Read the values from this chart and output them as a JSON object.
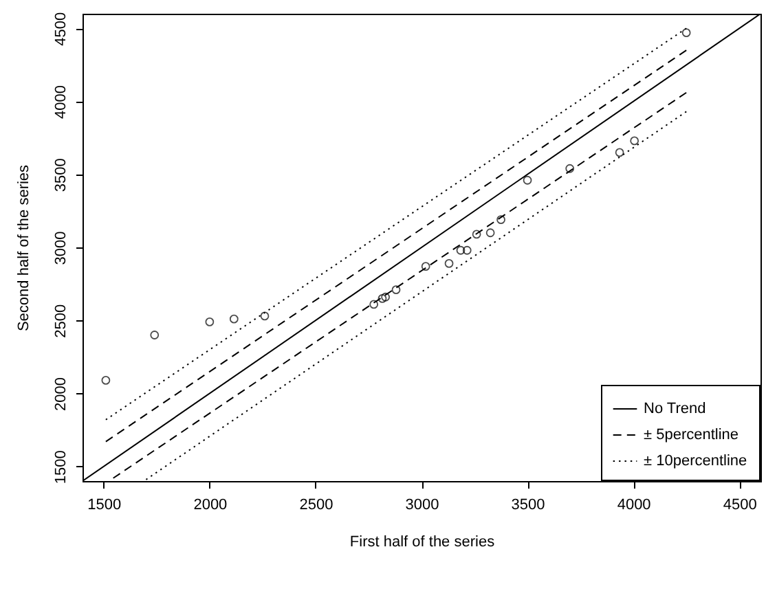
{
  "chart_data": {
    "type": "scatter",
    "xlabel": "First half of the series",
    "ylabel": "Second half of the series",
    "xlim": [
      1400,
      4600
    ],
    "ylim": [
      1400,
      4600
    ],
    "xticks": [
      1500,
      2000,
      2500,
      3000,
      3500,
      4000,
      4500
    ],
    "yticks": [
      1500,
      2000,
      2500,
      3000,
      3500,
      4000,
      4500
    ],
    "grid": false,
    "legend": "bottom right",
    "series": [
      {
        "type": "scatter",
        "color": "#000000",
        "marker": "circle",
        "x": [
          1510,
          1740,
          2000,
          2115,
          2260,
          2775,
          2815,
          2830,
          2880,
          3020,
          3130,
          3185,
          3215,
          3260,
          3325,
          3375,
          3500,
          3700,
          3935,
          4005,
          4250
        ],
        "values": [
          2090,
          2400,
          2490,
          2510,
          2530,
          2610,
          2650,
          2660,
          2710,
          2870,
          2890,
          2980,
          2980,
          3090,
          3100,
          3190,
          3460,
          3540,
          3650,
          3730,
          4470
        ]
      },
      {
        "name": "No Trend",
        "type": "line",
        "color": "#000000",
        "line_style": "solid",
        "x": [
          1400,
          4600
        ],
        "values": [
          1400,
          4600
        ]
      },
      {
        "name": "± 5percentline",
        "type": "line",
        "color": "#000000",
        "line_style": "dashed",
        "x": [
          1510,
          4250
        ],
        "values": [
          1670,
          4350
        ]
      },
      {
        "type": "line",
        "color": "#000000",
        "line_style": "dashed",
        "x": [
          1545,
          4250
        ],
        "values": [
          1420,
          4060
        ]
      },
      {
        "name": "± 10percentline",
        "type": "line",
        "color": "#000000",
        "line_style": "dotted",
        "x": [
          1510,
          4250
        ],
        "values": [
          1820,
          4500
        ]
      },
      {
        "type": "line",
        "color": "#000000",
        "line_style": "dotted",
        "x": [
          1700,
          4250
        ],
        "values": [
          1410,
          3930
        ]
      }
    ]
  }
}
